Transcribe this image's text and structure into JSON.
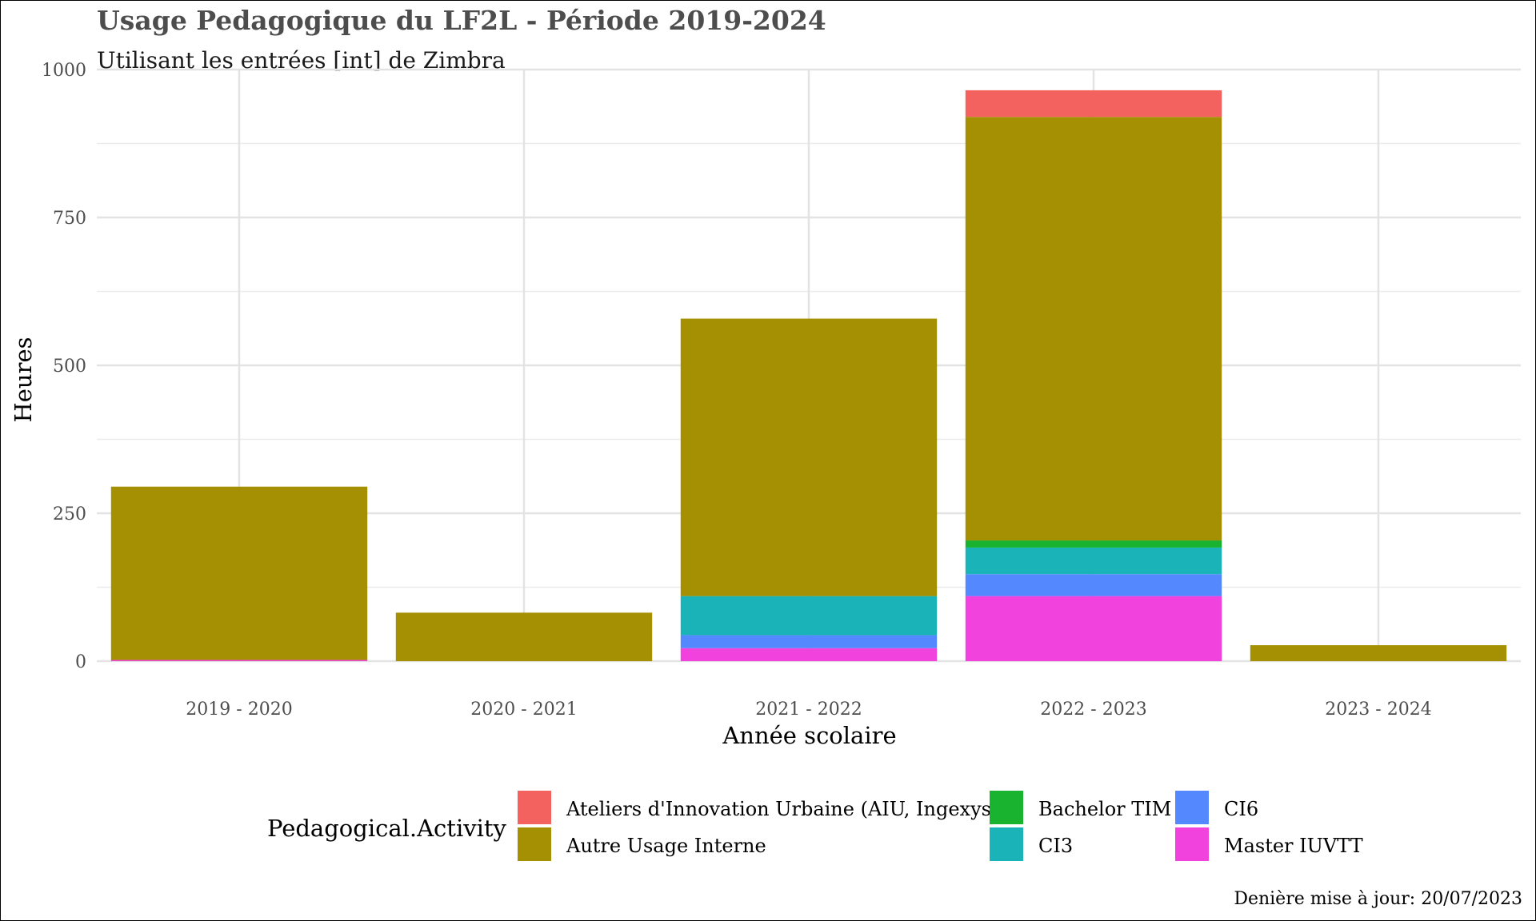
{
  "chart_data": {
    "type": "bar",
    "stacked": true,
    "title": "Usage Pedagogique du LF2L - Période 2019-2024",
    "subtitle": "Utilisant les entrées [int] de Zimbra",
    "xlabel": "Année scolaire",
    "ylabel": "Heures",
    "ylim": [
      0,
      1000
    ],
    "yticks": [
      0,
      250,
      500,
      750,
      1000
    ],
    "grid": true,
    "legend_title": "Pedagogical.Activity",
    "legend_position": "bottom",
    "caption": "Denière mise à jour: 20/07/2023",
    "categories": [
      "2019 - 2020",
      "2020 - 2021",
      "2021 - 2022",
      "2022 - 2023",
      "2023 - 2024"
    ],
    "series": [
      {
        "name": "Master IUVTT",
        "color": "#F142DD",
        "values": [
          2,
          0,
          22,
          110,
          0
        ]
      },
      {
        "name": "CI6",
        "color": "#5488FF",
        "values": [
          0,
          0,
          22,
          37,
          0
        ]
      },
      {
        "name": "CI3",
        "color": "#1AB4B8",
        "values": [
          0,
          0,
          66,
          45,
          0
        ]
      },
      {
        "name": "Bachelor TIM",
        "color": "#19B330",
        "values": [
          0,
          0,
          0,
          12,
          0
        ]
      },
      {
        "name": "Autre Usage Interne",
        "color": "#A59004",
        "values": [
          293,
          82,
          469,
          716,
          27
        ]
      },
      {
        "name": "Ateliers d'Innovation Urbaine (AIU, Ingexys)",
        "color": "#F3625E",
        "values": [
          0,
          0,
          0,
          45,
          0
        ]
      }
    ],
    "legend_order": [
      "Ateliers d'Innovation Urbaine (AIU, Ingexys)",
      "Autre Usage Interne",
      "Bachelor TIM",
      "CI3",
      "CI6",
      "Master IUVTT"
    ]
  }
}
